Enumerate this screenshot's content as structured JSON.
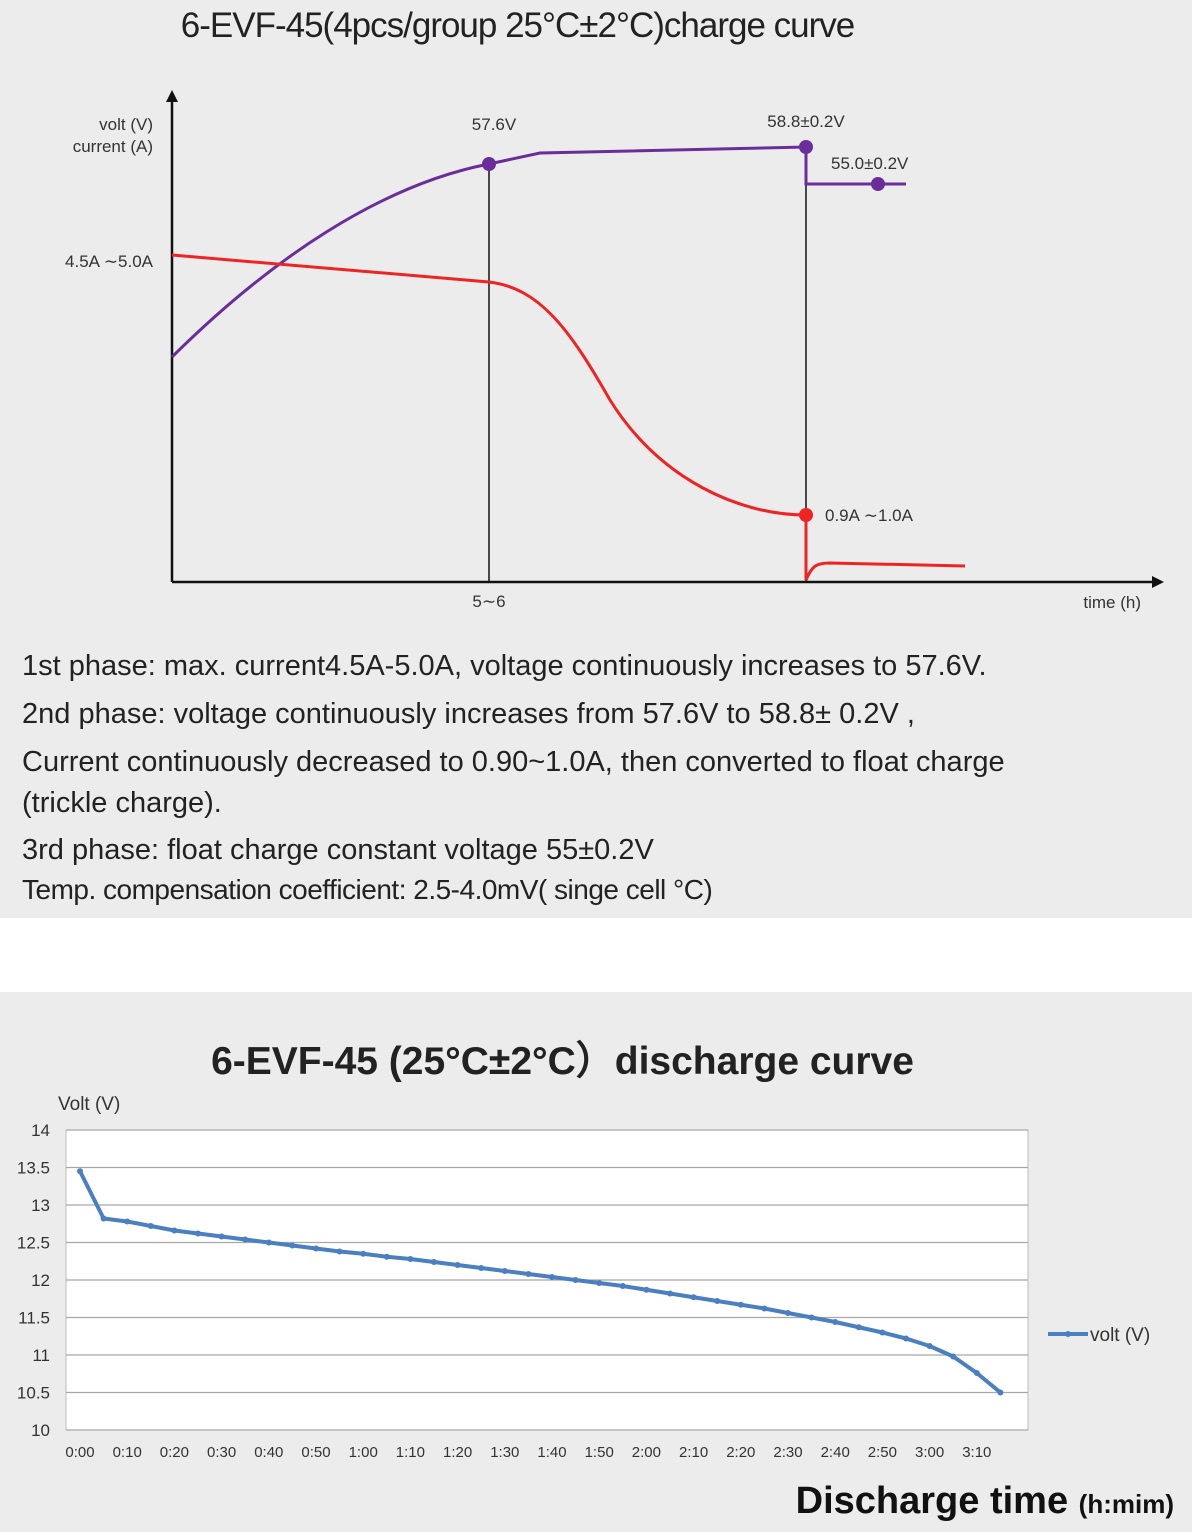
{
  "charge_chart": {
    "title": "6-EVF-45(4pcs/group  25°C±2°C)charge curve",
    "ylabel_volt": "volt (V)",
    "ylabel_current": "current (A)",
    "xlabel": "time (h)",
    "x_tick": "5∼6",
    "annotations": {
      "v1": "57.6V",
      "v2": "58.8±0.2V",
      "v3": "55.0±0.2V",
      "i1": "4.5A ∼5.0A",
      "i2": "0.9A ∼1.0A"
    },
    "colors": {
      "voltage": "#6a2d9a",
      "current": "#ee2424"
    }
  },
  "notes": [
    "1st phase: max. current4.5A-5.0A, voltage continuously increases to 57.6V.",
    "2nd phase: voltage continuously increases from 57.6V to 58.8± 0.2V ,",
    "Current continuously decreased to 0.90~1.0A, then converted to float charge",
    "(trickle charge).",
    "3rd phase: float charge constant voltage 55±0.2V",
    "Temp. compensation  coefficient:  2.5-4.0mV( singe cell °C)"
  ],
  "chart_data": {
    "type": "line",
    "title": "6-EVF-45 (25°C±2°C）discharge curve",
    "ylabel": "Volt (V)",
    "xlabel": "Discharge time",
    "xlabel_unit": "(h:mim)",
    "ylim": [
      10,
      14
    ],
    "yticks": [
      "14",
      "13.5",
      "13",
      "12.5",
      "12",
      "11.5",
      "11",
      "10.5",
      "10"
    ],
    "x": [
      "0:00",
      "0:05",
      "0:10",
      "0:15",
      "0:20",
      "0:25",
      "0:30",
      "0:35",
      "0:40",
      "0:45",
      "0:50",
      "0:55",
      "1:00",
      "1:05",
      "1:10",
      "1:15",
      "1:20",
      "1:25",
      "1:30",
      "1:35",
      "1:40",
      "1:45",
      "1:50",
      "1:55",
      "2:00",
      "2:05",
      "2:10",
      "2:15",
      "2:20",
      "2:25",
      "2:30",
      "2:35",
      "2:40",
      "2:45",
      "2:50",
      "2:55",
      "3:00",
      "3:05",
      "3:10",
      "3:15"
    ],
    "xtick_labels": [
      "0:00",
      "0:10",
      "0:20",
      "0:30",
      "0:40",
      "0:50",
      "1:00",
      "1:10",
      "1:20",
      "1:30",
      "1:40",
      "1:50",
      "2:00",
      "2:10",
      "2:20",
      "2:30",
      "2:40",
      "2:50",
      "3:00",
      "3:10"
    ],
    "series": [
      {
        "name": "volt (V)",
        "color": "#4a7fc1",
        "values": [
          13.45,
          12.82,
          12.78,
          12.72,
          12.66,
          12.62,
          12.58,
          12.54,
          12.5,
          12.46,
          12.42,
          12.38,
          12.35,
          12.31,
          12.28,
          12.24,
          12.2,
          12.16,
          12.12,
          12.08,
          12.04,
          12.0,
          11.96,
          11.92,
          11.87,
          11.82,
          11.77,
          11.72,
          11.67,
          11.62,
          11.56,
          11.5,
          11.44,
          11.37,
          11.3,
          11.22,
          11.12,
          10.98,
          10.76,
          10.5
        ]
      }
    ],
    "grid": true,
    "legend": "right"
  }
}
